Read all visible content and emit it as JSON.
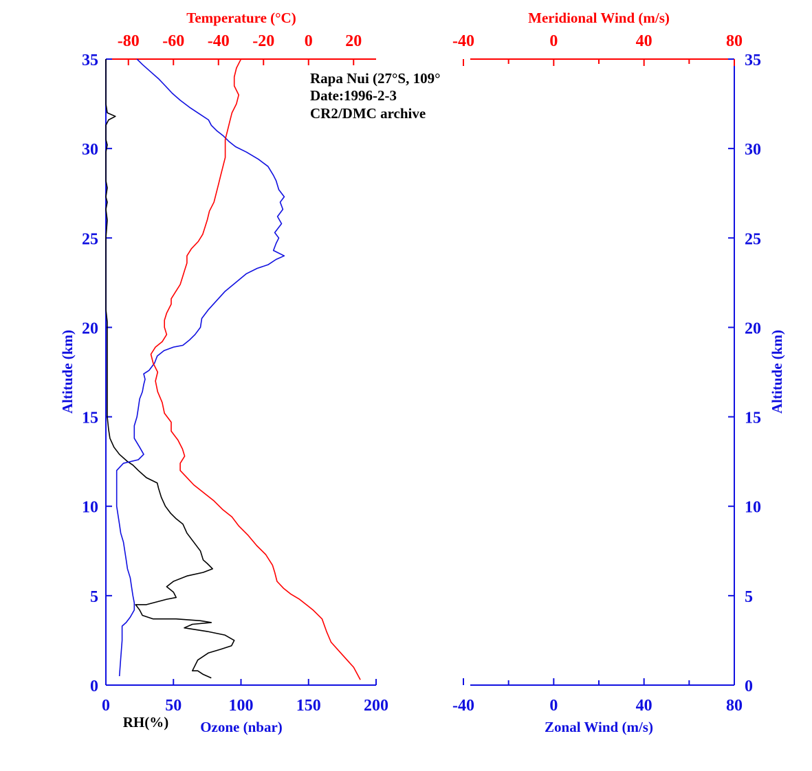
{
  "chart_data": [
    {
      "type": "line",
      "info_lines": [
        "Rapa Nui (27°S, 109°",
        "Date:1996-2-3",
        "CR2/DMC archive"
      ],
      "ylabel": "Altitude (km)",
      "ylim": [
        0,
        35
      ],
      "yticks": [
        0,
        5,
        10,
        15,
        20,
        25,
        30,
        35
      ],
      "bottom_axis": {
        "xlim": [
          0,
          200
        ],
        "ticks": [
          0,
          50,
          100,
          150,
          200
        ],
        "labels": [
          "RH(%)",
          "Ozone (nbar)"
        ]
      },
      "top_axis": {
        "label": "Temperature (°C)",
        "xlim": [
          -90,
          30
        ],
        "ticks": [
          -80,
          -60,
          -40,
          -20,
          0,
          20
        ]
      },
      "series": [
        {
          "name": "RH(%)",
          "axis": "bottom",
          "color": "#000000",
          "points": [
            [
              78,
              0.4
            ],
            [
              72,
              0.6
            ],
            [
              68,
              0.8
            ],
            [
              64,
              0.8
            ],
            [
              68,
              1.4
            ],
            [
              76,
              1.8
            ],
            [
              85,
              2.0
            ],
            [
              93,
              2.2
            ],
            [
              95,
              2.5
            ],
            [
              88,
              2.8
            ],
            [
              75,
              3.0
            ],
            [
              58,
              3.2
            ],
            [
              64,
              3.4
            ],
            [
              78,
              3.5
            ],
            [
              70,
              3.6
            ],
            [
              52,
              3.7
            ],
            [
              35,
              3.7
            ],
            [
              27,
              3.9
            ],
            [
              25,
              4.2
            ],
            [
              22,
              4.5
            ],
            [
              30,
              4.5
            ],
            [
              45,
              4.8
            ],
            [
              52,
              4.9
            ],
            [
              50,
              5.2
            ],
            [
              45,
              5.5
            ],
            [
              50,
              5.8
            ],
            [
              60,
              6.1
            ],
            [
              72,
              6.3
            ],
            [
              79,
              6.5
            ],
            [
              75,
              6.8
            ],
            [
              72,
              7.0
            ],
            [
              70,
              7.5
            ],
            [
              65,
              8.0
            ],
            [
              60,
              8.5
            ],
            [
              57,
              9.0
            ],
            [
              52,
              9.3
            ],
            [
              48,
              9.6
            ],
            [
              44,
              10.0
            ],
            [
              41,
              10.5
            ],
            [
              39,
              11.0
            ],
            [
              38,
              11.3
            ],
            [
              30,
              11.6
            ],
            [
              24,
              12.0
            ],
            [
              20,
              12.3
            ],
            [
              16,
              12.5
            ],
            [
              10,
              12.9
            ],
            [
              6,
              13.3
            ],
            [
              3,
              13.8
            ],
            [
              2,
              14.3
            ],
            [
              1,
              15.0
            ],
            [
              1,
              16.0
            ],
            [
              1,
              17.0
            ],
            [
              1,
              18.0
            ],
            [
              1,
              19.0
            ],
            [
              1,
              19.7
            ],
            [
              1,
              20.3
            ],
            [
              0,
              21.0
            ],
            [
              0,
              23.0
            ],
            [
              0,
              25.0
            ],
            [
              1,
              26.0
            ],
            [
              0,
              26.6
            ],
            [
              1,
              27.0
            ],
            [
              0,
              27.3
            ],
            [
              1,
              27.8
            ],
            [
              0,
              28.2
            ],
            [
              0,
              29.0
            ],
            [
              0,
              29.8
            ],
            [
              1,
              30.2
            ],
            [
              0,
              30.5
            ],
            [
              0,
              31.3
            ],
            [
              2,
              31.6
            ],
            [
              7,
              31.8
            ],
            [
              1,
              32.0
            ],
            [
              0,
              32.5
            ],
            [
              0,
              33.5
            ],
            [
              0,
              35.0
            ]
          ]
        },
        {
          "name": "Ozone (nbar)",
          "axis": "bottom",
          "color": "#1010e0",
          "points": [
            [
              10,
              0.5
            ],
            [
              11,
              1.5
            ],
            [
              12,
              2.5
            ],
            [
              12,
              3.3
            ],
            [
              15,
              3.5
            ],
            [
              18,
              3.8
            ],
            [
              21,
              4.2
            ],
            [
              21,
              4.6
            ],
            [
              20,
              5.0
            ],
            [
              19,
              5.5
            ],
            [
              18,
              6.0
            ],
            [
              16,
              6.5
            ],
            [
              15,
              7.0
            ],
            [
              14,
              7.5
            ],
            [
              13,
              8.0
            ],
            [
              11,
              8.5
            ],
            [
              10,
              9.0
            ],
            [
              9,
              9.5
            ],
            [
              8,
              10.0
            ],
            [
              8,
              11.0
            ],
            [
              8,
              12.0
            ],
            [
              13,
              12.4
            ],
            [
              24,
              12.6
            ],
            [
              28,
              12.9
            ],
            [
              25,
              13.3
            ],
            [
              21,
              13.8
            ],
            [
              21,
              14.5
            ],
            [
              23,
              15.0
            ],
            [
              24,
              15.5
            ],
            [
              25,
              16.0
            ],
            [
              27,
              16.4
            ],
            [
              28,
              16.8
            ],
            [
              29,
              17.1
            ],
            [
              28,
              17.4
            ],
            [
              32,
              17.6
            ],
            [
              36,
              18.0
            ],
            [
              38,
              18.4
            ],
            [
              43,
              18.7
            ],
            [
              50,
              18.9
            ],
            [
              57,
              19.0
            ],
            [
              62,
              19.3
            ],
            [
              66,
              19.6
            ],
            [
              70,
              20.0
            ],
            [
              71,
              20.5
            ],
            [
              76,
              21.0
            ],
            [
              82,
              21.5
            ],
            [
              88,
              22.0
            ],
            [
              96,
              22.5
            ],
            [
              104,
              23.0
            ],
            [
              112,
              23.3
            ],
            [
              120,
              23.5
            ],
            [
              126,
              23.8
            ],
            [
              132,
              24.0
            ],
            [
              124,
              24.3
            ],
            [
              126,
              24.7
            ],
            [
              128,
              25.0
            ],
            [
              125,
              25.3
            ],
            [
              130,
              25.8
            ],
            [
              127,
              26.2
            ],
            [
              131,
              26.6
            ],
            [
              129,
              27.0
            ],
            [
              132,
              27.3
            ],
            [
              128,
              27.7
            ],
            [
              126,
              28.2
            ],
            [
              124,
              28.5
            ],
            [
              120,
              29.0
            ],
            [
              113,
              29.4
            ],
            [
              104,
              29.8
            ],
            [
              96,
              30.1
            ],
            [
              91,
              30.4
            ],
            [
              87,
              30.7
            ],
            [
              82,
              31.0
            ],
            [
              78,
              31.3
            ],
            [
              76,
              31.6
            ],
            [
              70,
              31.9
            ],
            [
              62,
              32.3
            ],
            [
              55,
              32.7
            ],
            [
              49,
              33.1
            ],
            [
              44,
              33.5
            ],
            [
              39,
              33.9
            ],
            [
              33,
              34.3
            ],
            [
              27,
              34.7
            ],
            [
              23,
              35.0
            ]
          ]
        },
        {
          "name": "Temperature (°C)",
          "axis": "top",
          "color": "#ff0000",
          "points": [
            [
              23,
              0.3
            ],
            [
              20,
              1.0
            ],
            [
              15,
              1.7
            ],
            [
              10,
              2.4
            ],
            [
              8,
              3.0
            ],
            [
              6,
              3.7
            ],
            [
              2,
              4.2
            ],
            [
              0,
              4.4
            ],
            [
              -4,
              4.8
            ],
            [
              -8,
              5.1
            ],
            [
              -11,
              5.4
            ],
            [
              -14,
              5.8
            ],
            [
              -15,
              6.3
            ],
            [
              -16,
              6.7
            ],
            [
              -19,
              7.3
            ],
            [
              -23,
              7.8
            ],
            [
              -27,
              8.4
            ],
            [
              -31,
              8.9
            ],
            [
              -34,
              9.4
            ],
            [
              -38,
              9.8
            ],
            [
              -42,
              10.3
            ],
            [
              -46,
              10.7
            ],
            [
              -51,
              11.2
            ],
            [
              -54,
              11.6
            ],
            [
              -57,
              12.0
            ],
            [
              -57,
              12.4
            ],
            [
              -55,
              12.8
            ],
            [
              -56,
              13.2
            ],
            [
              -58,
              13.7
            ],
            [
              -61,
              14.2
            ],
            [
              -61,
              14.7
            ],
            [
              -64,
              15.2
            ],
            [
              -65,
              15.8
            ],
            [
              -67,
              16.4
            ],
            [
              -68,
              17.0
            ],
            [
              -67,
              17.5
            ],
            [
              -69,
              18.0
            ],
            [
              -70,
              18.5
            ],
            [
              -68,
              18.9
            ],
            [
              -65,
              19.2
            ],
            [
              -63,
              19.6
            ],
            [
              -64,
              20.0
            ],
            [
              -64,
              20.4
            ],
            [
              -63,
              20.8
            ],
            [
              -61,
              21.3
            ],
            [
              -61,
              21.6
            ],
            [
              -59,
              22.0
            ],
            [
              -57,
              22.4
            ],
            [
              -56,
              22.8
            ],
            [
              -55,
              23.2
            ],
            [
              -54,
              23.6
            ],
            [
              -54,
              24.0
            ],
            [
              -52,
              24.4
            ],
            [
              -49,
              24.8
            ],
            [
              -47,
              25.2
            ],
            [
              -46,
              25.6
            ],
            [
              -45,
              26.0
            ],
            [
              -44,
              26.5
            ],
            [
              -42,
              27.0
            ],
            [
              -41,
              27.5
            ],
            [
              -40,
              28.0
            ],
            [
              -39,
              28.5
            ],
            [
              -38,
              29.0
            ],
            [
              -37,
              29.5
            ],
            [
              -37,
              30.0
            ],
            [
              -37,
              30.5
            ],
            [
              -36,
              31.0
            ],
            [
              -35,
              31.5
            ],
            [
              -34,
              32.0
            ],
            [
              -32,
              32.5
            ],
            [
              -31,
              33.0
            ],
            [
              -33,
              33.5
            ],
            [
              -33,
              34.0
            ],
            [
              -32,
              34.5
            ],
            [
              -30,
              35.0
            ]
          ]
        }
      ]
    },
    {
      "type": "line",
      "ylabel": "Altitude (km)",
      "ylim": [
        0,
        35
      ],
      "yticks": [
        0,
        5,
        10,
        15,
        20,
        25,
        30,
        35
      ],
      "bottom_axis": {
        "label": "Zonal Wind (m/s)",
        "xlim": [
          -40,
          80
        ],
        "ticks": [
          -40,
          0,
          40,
          80
        ]
      },
      "top_axis": {
        "label": "Meridional Wind (m/s)",
        "xlim": [
          -40,
          80
        ],
        "ticks": [
          -40,
          0,
          40,
          80
        ]
      },
      "series": []
    }
  ]
}
